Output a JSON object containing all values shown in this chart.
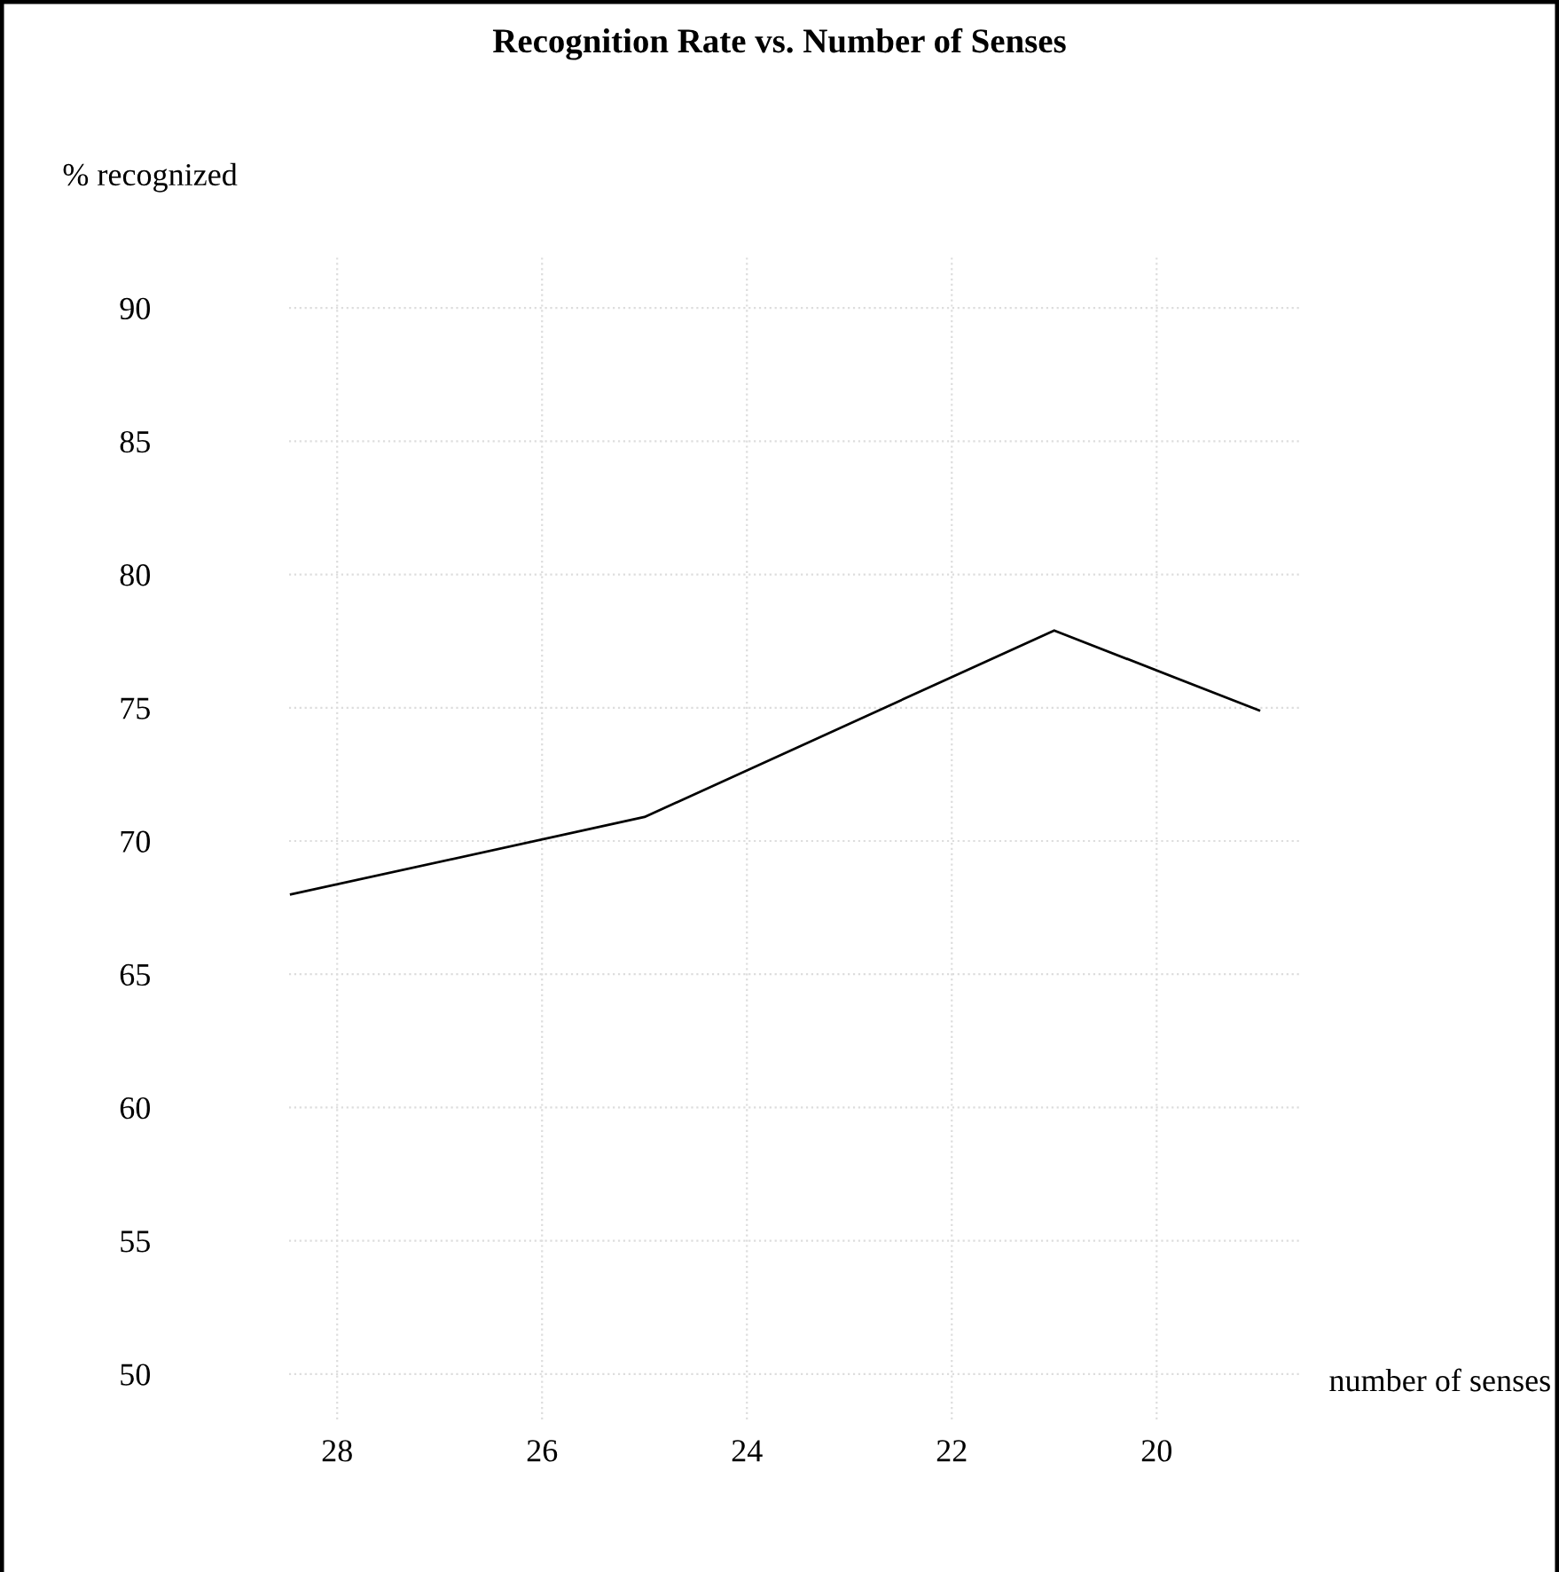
{
  "chart_data": {
    "type": "line",
    "title": "Recognition Rate vs. Number of Senses",
    "xlabel": "number of senses",
    "ylabel": "% recognized",
    "x": [
      28.45,
      25,
      21,
      19
    ],
    "series": [
      {
        "color": "#000000",
        "values": [
          68,
          70.9,
          77.9,
          74.9
        ]
      }
    ],
    "xlim": [
      28.47,
      18.6
    ],
    "xticks": [
      28,
      26,
      24,
      22,
      20
    ],
    "ylim": [
      48.3,
      91.9
    ],
    "yticks": [
      50,
      55,
      60,
      65,
      70,
      75,
      80,
      85,
      90
    ],
    "grid": true,
    "legend": false,
    "marker": "none",
    "line_style": "solid"
  }
}
